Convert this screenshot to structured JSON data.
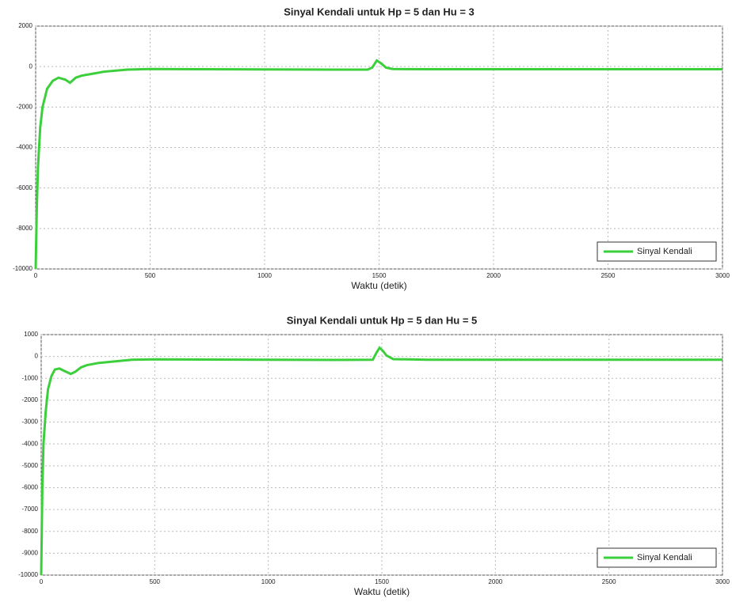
{
  "chart_data": [
    {
      "type": "line",
      "title": "Sinyal Kendali untuk Hp = 5 dan Hu = 3",
      "xlabel": "Waktu (detik)",
      "x": [
        0,
        5,
        10,
        20,
        30,
        50,
        75,
        100,
        130,
        150,
        175,
        200,
        250,
        300,
        400,
        500,
        700,
        1000,
        1300,
        1450,
        1470,
        1490,
        1510,
        1530,
        1560,
        1700,
        2000,
        2500,
        3000
      ],
      "series": [
        {
          "name": "Sinyal Kendali",
          "color": "#3ccf3c",
          "values": [
            -10000,
            -7000,
            -5000,
            -3000,
            -2000,
            -1100,
            -700,
            -550,
            -650,
            -800,
            -550,
            -450,
            -350,
            -250,
            -150,
            -120,
            -130,
            -140,
            -150,
            -150,
            -50,
            300,
            150,
            -50,
            -120,
            -130,
            -130,
            -130,
            -130
          ]
        }
      ],
      "xlim": [
        0,
        3000
      ],
      "xticks": [
        0,
        500,
        1000,
        1500,
        2000,
        2500,
        3000
      ],
      "ylim": [
        -10000,
        2000
      ],
      "yticks": [
        2000,
        0,
        -2000,
        -4000,
        -6000,
        -8000,
        -10000
      ],
      "grid": true,
      "legend": "lower right"
    },
    {
      "type": "line",
      "title": "Sinyal Kendali untuk Hp = 5 dan Hu = 5",
      "xlabel": "Waktu (detik)",
      "x": [
        0,
        5,
        10,
        20,
        30,
        45,
        60,
        80,
        100,
        130,
        150,
        175,
        200,
        250,
        300,
        400,
        500,
        700,
        1000,
        1300,
        1460,
        1475,
        1490,
        1505,
        1520,
        1550,
        1700,
        2000,
        2500,
        3000
      ],
      "series": [
        {
          "name": "Sinyal Kendali",
          "color": "#3ccf3c",
          "values": [
            -10000,
            -6000,
            -4000,
            -2500,
            -1500,
            -900,
            -600,
            -550,
            -650,
            -800,
            -700,
            -500,
            -400,
            -300,
            -250,
            -150,
            -130,
            -140,
            -150,
            -160,
            -150,
            150,
            400,
            250,
            50,
            -120,
            -150,
            -150,
            -150,
            -150
          ]
        }
      ],
      "xlim": [
        0,
        3000
      ],
      "xticks": [
        0,
        500,
        1000,
        1500,
        2000,
        2500,
        3000
      ],
      "ylim": [
        -10000,
        1000
      ],
      "yticks": [
        1000,
        0,
        -1000,
        -2000,
        -3000,
        -4000,
        -5000,
        -6000,
        -7000,
        -8000,
        -9000,
        -10000
      ],
      "grid": true,
      "legend": "lower right"
    }
  ]
}
